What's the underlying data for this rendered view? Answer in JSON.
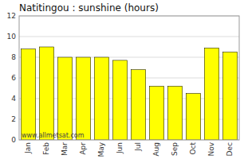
{
  "chart_data": {
    "type": "bar",
    "title": "Natitingou : sunshine (hours)",
    "categories": [
      "Jan",
      "Feb",
      "Mar",
      "Apr",
      "May",
      "Jun",
      "Jul",
      "Aug",
      "Sep",
      "Oct",
      "Nov",
      "Dec"
    ],
    "values": [
      8.8,
      9.0,
      8.0,
      8.0,
      8.0,
      7.7,
      6.8,
      5.2,
      5.2,
      4.5,
      8.9,
      8.5
    ],
    "color": "#ffff00",
    "ylim": [
      0,
      12
    ],
    "yticks": [
      0,
      2,
      4,
      6,
      8,
      10,
      12
    ],
    "grid": true,
    "annotation": "www.allmetsat.com"
  }
}
